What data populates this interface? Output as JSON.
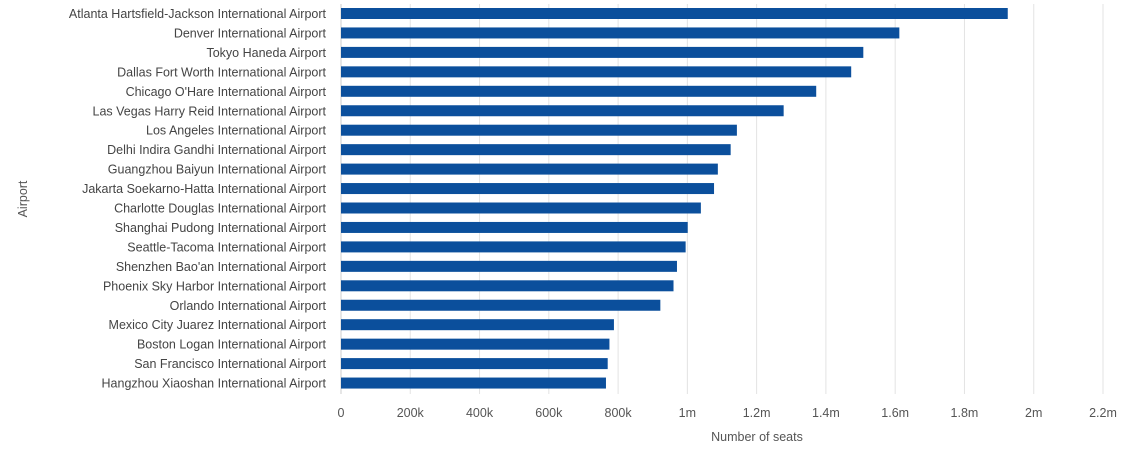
{
  "chart_data": {
    "type": "bar",
    "orientation": "horizontal",
    "xlabel": "Number of seats",
    "ylabel": "Airport",
    "xlim": [
      0,
      2200000
    ],
    "x_ticks": [
      0,
      200000,
      400000,
      600000,
      800000,
      1000000,
      1200000,
      1400000,
      1600000,
      1800000,
      2000000,
      2200000
    ],
    "x_tick_labels": [
      "0",
      "200k",
      "400k",
      "600k",
      "800k",
      "1m",
      "1.2m",
      "1.4m",
      "1.6m",
      "1.8m",
      "2m",
      "2.2m"
    ],
    "grid": "vertical",
    "bar_color": "#0b4f9c",
    "categories": [
      "Atlanta Hartsfield-Jackson International Airport",
      "Denver International Airport",
      "Tokyo Haneda Airport",
      "Dallas Fort Worth International Airport",
      "Chicago O'Hare International Airport",
      "Las Vegas Harry Reid International Airport",
      "Los Angeles International Airport",
      "Delhi Indira Gandhi International Airport",
      "Guangzhou Baiyun International Airport",
      "Jakarta Soekarno-Hatta International Airport",
      "Charlotte Douglas International Airport",
      "Shanghai Pudong International Airport",
      "Seattle-Tacoma International Airport",
      "Shenzhen Bao'an International Airport",
      "Phoenix Sky Harbor International Airport",
      "Orlando International Airport",
      "Mexico City Juarez International Airport",
      "Boston Logan International Airport",
      "San Francisco International Airport",
      "Hangzhou Xiaoshan International Airport"
    ],
    "values": [
      1925000,
      1612000,
      1508000,
      1473000,
      1372000,
      1278000,
      1143000,
      1125000,
      1088000,
      1077000,
      1039000,
      1001000,
      995000,
      970000,
      960000,
      922000,
      788000,
      775000,
      770000,
      765000
    ]
  }
}
